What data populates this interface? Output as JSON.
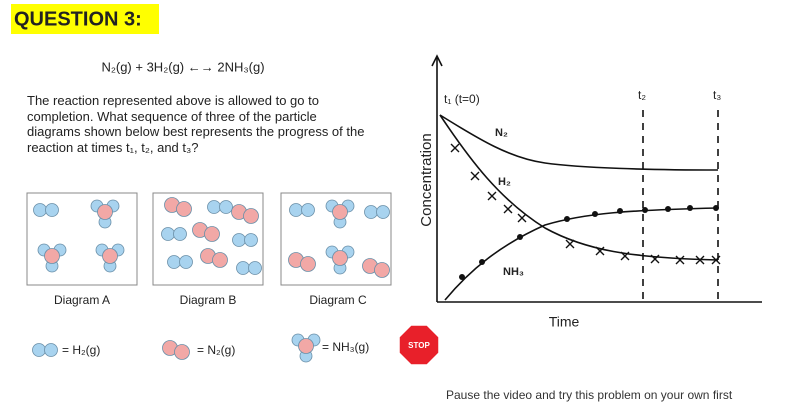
{
  "header": {
    "title": "QUESTION 3:"
  },
  "equation": "N₂(g) + 3H₂(g) ←→ 2NH₃(g)",
  "prompt": "The reaction represented above is allowed to go to completion. What sequence of three of the particle diagrams shown below best represents the progress of the reaction at times t₁, t₂, and t₃?",
  "diagrams": [
    "Diagram A",
    "Diagram B",
    "Diagram C"
  ],
  "legend": [
    "= H₂(g)",
    "= N₂(g)",
    "= NH₃(g)"
  ],
  "stop": "STOP",
  "footer": "Pause the video and try this problem on your own first",
  "graph": {
    "y_label": "Concentration",
    "x_label": "Time",
    "times": [
      "t₁ (t=0)",
      "t₂",
      "t₃"
    ],
    "curves": [
      "N₂",
      "H₂",
      "NH₃"
    ]
  }
}
